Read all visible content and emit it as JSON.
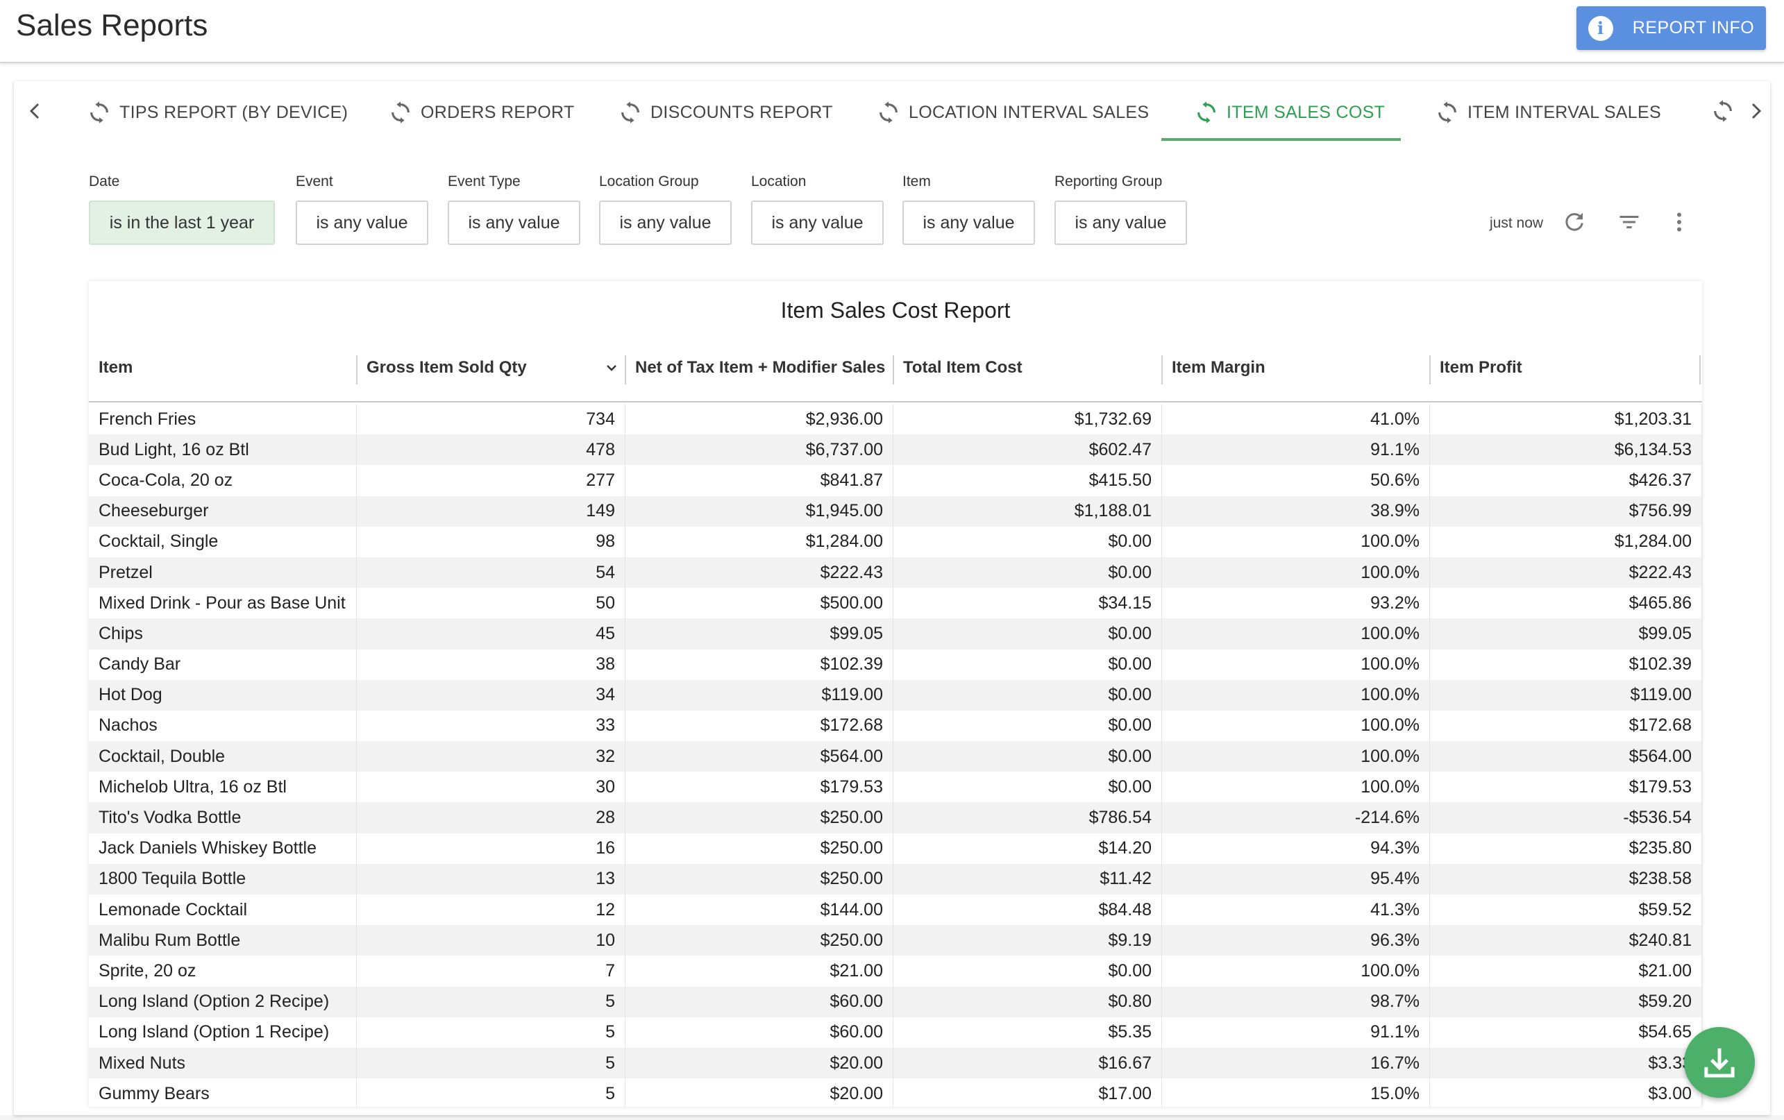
{
  "header": {
    "title": "Sales Reports",
    "report_info_label": "REPORT INFO"
  },
  "tabs": [
    {
      "label": "TIPS REPORT (BY DEVICE)",
      "active": false
    },
    {
      "label": "ORDERS REPORT",
      "active": false
    },
    {
      "label": "DISCOUNTS REPORT",
      "active": false
    },
    {
      "label": "LOCATION INTERVAL SALES",
      "active": false
    },
    {
      "label": "ITEM SALES COST",
      "active": true
    },
    {
      "label": "ITEM INTERVAL SALES",
      "active": false
    }
  ],
  "filters": [
    {
      "label": "Date",
      "value": "is in the last 1 year",
      "active": true
    },
    {
      "label": "Event",
      "value": "is any value",
      "active": false
    },
    {
      "label": "Event Type",
      "value": "is any value",
      "active": false
    },
    {
      "label": "Location Group",
      "value": "is any value",
      "active": false
    },
    {
      "label": "Location",
      "value": "is any value",
      "active": false
    },
    {
      "label": "Item",
      "value": "is any value",
      "active": false
    },
    {
      "label": "Reporting Group",
      "value": "is any value",
      "active": false
    }
  ],
  "toolbar": {
    "updated": "just now"
  },
  "table": {
    "title": "Item Sales Cost Report",
    "columns": [
      "Item",
      "Gross Item Sold Qty",
      "Net of Tax Item + Modifier Sales",
      "Total Item Cost",
      "Item Margin",
      "Item Profit"
    ],
    "rows": [
      [
        "French Fries",
        "734",
        "$2,936.00",
        "$1,732.69",
        "41.0%",
        "$1,203.31"
      ],
      [
        "Bud Light, 16 oz Btl",
        "478",
        "$6,737.00",
        "$602.47",
        "91.1%",
        "$6,134.53"
      ],
      [
        "Coca-Cola, 20 oz",
        "277",
        "$841.87",
        "$415.50",
        "50.6%",
        "$426.37"
      ],
      [
        "Cheeseburger",
        "149",
        "$1,945.00",
        "$1,188.01",
        "38.9%",
        "$756.99"
      ],
      [
        "Cocktail, Single",
        "98",
        "$1,284.00",
        "$0.00",
        "100.0%",
        "$1,284.00"
      ],
      [
        "Pretzel",
        "54",
        "$222.43",
        "$0.00",
        "100.0%",
        "$222.43"
      ],
      [
        "Mixed Drink - Pour as Base Unit",
        "50",
        "$500.00",
        "$34.15",
        "93.2%",
        "$465.86"
      ],
      [
        "Chips",
        "45",
        "$99.05",
        "$0.00",
        "100.0%",
        "$99.05"
      ],
      [
        "Candy Bar",
        "38",
        "$102.39",
        "$0.00",
        "100.0%",
        "$102.39"
      ],
      [
        "Hot Dog",
        "34",
        "$119.00",
        "$0.00",
        "100.0%",
        "$119.00"
      ],
      [
        "Nachos",
        "33",
        "$172.68",
        "$0.00",
        "100.0%",
        "$172.68"
      ],
      [
        "Cocktail, Double",
        "32",
        "$564.00",
        "$0.00",
        "100.0%",
        "$564.00"
      ],
      [
        "Michelob Ultra, 16 oz Btl",
        "30",
        "$179.53",
        "$0.00",
        "100.0%",
        "$179.53"
      ],
      [
        "Tito's Vodka Bottle",
        "28",
        "$250.00",
        "$786.54",
        "-214.6%",
        "-$536.54"
      ],
      [
        "Jack Daniels Whiskey Bottle",
        "16",
        "$250.00",
        "$14.20",
        "94.3%",
        "$235.80"
      ],
      [
        "1800 Tequila Bottle",
        "13",
        "$250.00",
        "$11.42",
        "95.4%",
        "$238.58"
      ],
      [
        "Lemonade Cocktail",
        "12",
        "$144.00",
        "$84.48",
        "41.3%",
        "$59.52"
      ],
      [
        "Malibu Rum Bottle",
        "10",
        "$250.00",
        "$9.19",
        "96.3%",
        "$240.81"
      ],
      [
        "Sprite, 20 oz",
        "7",
        "$21.00",
        "$0.00",
        "100.0%",
        "$21.00"
      ],
      [
        "Long Island (Option 2 Recipe)",
        "5",
        "$60.00",
        "$0.80",
        "98.7%",
        "$59.20"
      ],
      [
        "Long Island (Option 1 Recipe)",
        "5",
        "$60.00",
        "$5.35",
        "91.1%",
        "$54.65"
      ],
      [
        "Mixed Nuts",
        "5",
        "$20.00",
        "$16.67",
        "16.7%",
        "$3.33"
      ],
      [
        "Gummy Bears",
        "5",
        "$20.00",
        "$17.00",
        "15.0%",
        "$3.00"
      ]
    ]
  },
  "colors": {
    "accent_green": "#2e9e50",
    "button_blue": "#5b8fe0",
    "fab_green": "#4caf6a"
  },
  "icons": {
    "tab_icon": "refresh-icon",
    "prev": "chevron-left-icon",
    "next": "chevron-right-icon",
    "download": "download-icon"
  }
}
